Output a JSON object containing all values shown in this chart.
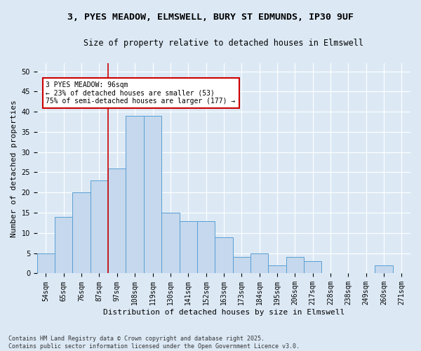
{
  "title1": "3, PYES MEADOW, ELMSWELL, BURY ST EDMUNDS, IP30 9UF",
  "title2": "Size of property relative to detached houses in Elmswell",
  "xlabel": "Distribution of detached houses by size in Elmswell",
  "ylabel": "Number of detached properties",
  "categories": [
    "54sqm",
    "65sqm",
    "76sqm",
    "87sqm",
    "97sqm",
    "108sqm",
    "119sqm",
    "130sqm",
    "141sqm",
    "152sqm",
    "163sqm",
    "173sqm",
    "184sqm",
    "195sqm",
    "206sqm",
    "217sqm",
    "228sqm",
    "238sqm",
    "249sqm",
    "260sqm",
    "271sqm"
  ],
  "values": [
    5,
    14,
    20,
    23,
    26,
    39,
    39,
    15,
    13,
    13,
    9,
    4,
    5,
    2,
    4,
    3,
    0,
    0,
    0,
    2,
    0
  ],
  "bar_color": "#c5d8ed",
  "bar_edge_color": "#5a9fd4",
  "vline_color": "#cc0000",
  "vline_x_index": 4,
  "annotation_text": "3 PYES MEADOW: 96sqm\n← 23% of detached houses are smaller (53)\n75% of semi-detached houses are larger (177) →",
  "annotation_box_color": "#ffffff",
  "annotation_box_edge_color": "#cc0000",
  "ylim": [
    0,
    52
  ],
  "yticks": [
    0,
    5,
    10,
    15,
    20,
    25,
    30,
    35,
    40,
    45,
    50
  ],
  "background_color": "#dce9f5",
  "plot_bg_color": "#dce9f5",
  "footer": "Contains HM Land Registry data © Crown copyright and database right 2025.\nContains public sector information licensed under the Open Government Licence v3.0.",
  "title_fontsize": 9.5,
  "subtitle_fontsize": 8.5,
  "axis_label_fontsize": 8,
  "tick_fontsize": 7,
  "annotation_fontsize": 7,
  "footer_fontsize": 6
}
